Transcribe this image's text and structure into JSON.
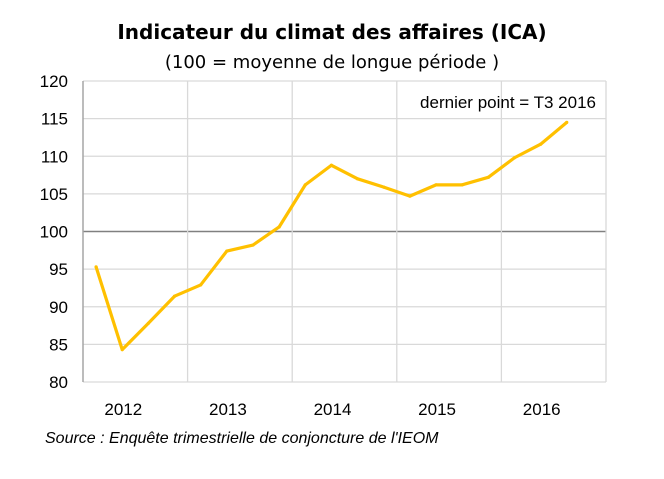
{
  "chart_data": {
    "type": "line",
    "title": "Indicateur du climat des affaires (ICA)",
    "subtitle": "(100 = moyenne de longue période )",
    "annotation": "dernier point = T3 2016",
    "source": "Source : Enquête trimestrielle de conjoncture de l'IEOM",
    "xlabel": "",
    "ylabel": "",
    "x_tick_labels": [
      "2012",
      "2013",
      "2014",
      "2015",
      "2016"
    ],
    "y_ticks": [
      80,
      85,
      90,
      95,
      100,
      105,
      110,
      115,
      120
    ],
    "ylim": [
      80,
      120
    ],
    "reference_line": 100,
    "grid": true,
    "x": [
      "2012T1",
      "2012T2",
      "2012T3",
      "2012T4",
      "2013T1",
      "2013T2",
      "2013T3",
      "2013T4",
      "2014T1",
      "2014T2",
      "2014T3",
      "2014T4",
      "2015T1",
      "2015T2",
      "2015T3",
      "2015T4",
      "2016T1",
      "2016T2",
      "2016T3"
    ],
    "values": [
      95.3,
      84.3,
      87.8,
      91.4,
      92.9,
      97.4,
      98.2,
      100.6,
      106.2,
      108.8,
      107.0,
      105.9,
      104.7,
      106.2,
      106.2,
      107.2,
      109.8,
      111.6,
      114.5
    ],
    "colors": {
      "line": "#FFC000",
      "grid": "#D9D9D9",
      "reference": "#808080"
    }
  }
}
